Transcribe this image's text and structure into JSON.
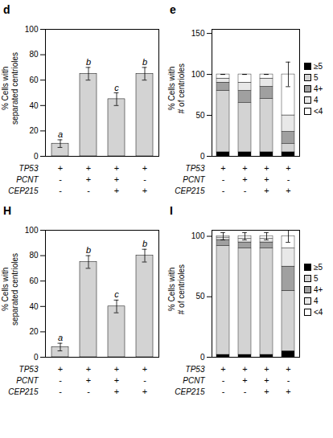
{
  "chart_data": [
    {
      "type": "bar",
      "title": "d",
      "categories": [
        null,
        null,
        null,
        null
      ],
      "values": [
        10,
        65,
        45,
        65
      ],
      "errors": [
        3,
        5,
        5,
        5
      ],
      "color": "#d3d3d3",
      "ylabel": "% Cells with\nseparated centrioles",
      "ylim": [
        0,
        100
      ],
      "yticks": [
        0,
        20,
        40,
        60,
        80,
        100
      ],
      "annotations": [
        "a",
        "b",
        "c",
        "b"
      ],
      "genotype": [
        {
          "name": "TP53",
          "values": [
            "+",
            "+",
            "+",
            "+"
          ]
        },
        {
          "name": "PCNT",
          "values": [
            "-",
            "+",
            "+",
            "-"
          ]
        },
        {
          "name": "CEP215",
          "values": [
            "-",
            "-",
            "+",
            "+"
          ]
        }
      ]
    },
    {
      "type": "bar",
      "stacked": true,
      "title": "e",
      "categories": [
        null,
        null,
        null,
        null
      ],
      "series": [
        {
          "name": "≥5",
          "color": "#000000",
          "values": [
            5,
            5,
            5,
            5
          ]
        },
        {
          "name": "5",
          "color": "#d3d3d3",
          "values": [
            75,
            60,
            65,
            10
          ]
        },
        {
          "name": "4+",
          "color": "#a0a0a0",
          "values": [
            10,
            15,
            15,
            15
          ]
        },
        {
          "name": "4",
          "color": "#e8e8e8",
          "values": [
            5,
            10,
            10,
            20
          ]
        },
        {
          "name": "<4",
          "color": "#ffffff",
          "values": [
            5,
            10,
            5,
            50
          ]
        }
      ],
      "errors": [
        0,
        0,
        0,
        15
      ],
      "error_center": [
        100,
        100,
        100,
        100
      ],
      "ylabel": "% Cells with\n# of centrioles",
      "ylim": [
        0,
        155
      ],
      "yticks": [
        0,
        50,
        100,
        150
      ],
      "legend": "right",
      "genotype": [
        {
          "name": "TP53",
          "values": [
            "+",
            "+",
            "+",
            "+"
          ]
        },
        {
          "name": "PCNT",
          "values": [
            "-",
            "+",
            "+",
            "-"
          ]
        },
        {
          "name": "CEP215",
          "values": [
            "-",
            "-",
            "+",
            "+"
          ]
        }
      ]
    },
    {
      "type": "bar",
      "title": "H",
      "categories": [
        null,
        null,
        null,
        null
      ],
      "values": [
        8,
        75,
        40,
        80
      ],
      "errors": [
        3,
        5,
        5,
        5
      ],
      "color": "#d3d3d3",
      "ylabel": "% Cells with\nseparated centrioles",
      "ylim": [
        0,
        100
      ],
      "yticks": [
        0,
        20,
        40,
        60,
        80,
        100
      ],
      "annotations": [
        "a",
        "b",
        "c",
        "b"
      ],
      "genotype": [
        {
          "name": "TP53",
          "values": [
            "+",
            "+",
            "+",
            "+"
          ]
        },
        {
          "name": "PCNT",
          "values": [
            "-",
            "+",
            "+",
            "-"
          ]
        },
        {
          "name": "CEP215",
          "values": [
            "-",
            "-",
            "+",
            "+"
          ]
        }
      ]
    },
    {
      "type": "bar",
      "stacked": true,
      "title": "I",
      "categories": [
        null,
        null,
        null,
        null
      ],
      "series": [
        {
          "name": "≥5",
          "color": "#000000",
          "values": [
            2,
            2,
            2,
            5
          ]
        },
        {
          "name": "5",
          "color": "#d3d3d3",
          "values": [
            90,
            88,
            88,
            50
          ]
        },
        {
          "name": "4+",
          "color": "#a0a0a0",
          "values": [
            5,
            5,
            5,
            20
          ]
        },
        {
          "name": "4",
          "color": "#e8e8e8",
          "values": [
            2,
            3,
            3,
            15
          ]
        },
        {
          "name": "<4",
          "color": "#ffffff",
          "values": [
            1,
            2,
            2,
            10
          ]
        }
      ],
      "errors": [
        3,
        3,
        3,
        5
      ],
      "error_center": [
        100,
        100,
        100,
        100
      ],
      "ylabel": "% Cells with\n# of centrioles",
      "ylim": [
        0,
        105
      ],
      "yticks": [
        0,
        50,
        100
      ],
      "legend": "right",
      "genotype": [
        {
          "name": "TP53",
          "values": [
            "+",
            "+",
            "+",
            "+"
          ]
        },
        {
          "name": "PCNT",
          "values": [
            "-",
            "+",
            "+",
            "-"
          ]
        },
        {
          "name": "CEP215",
          "values": [
            "-",
            "-",
            "+",
            "+"
          ]
        }
      ]
    }
  ]
}
